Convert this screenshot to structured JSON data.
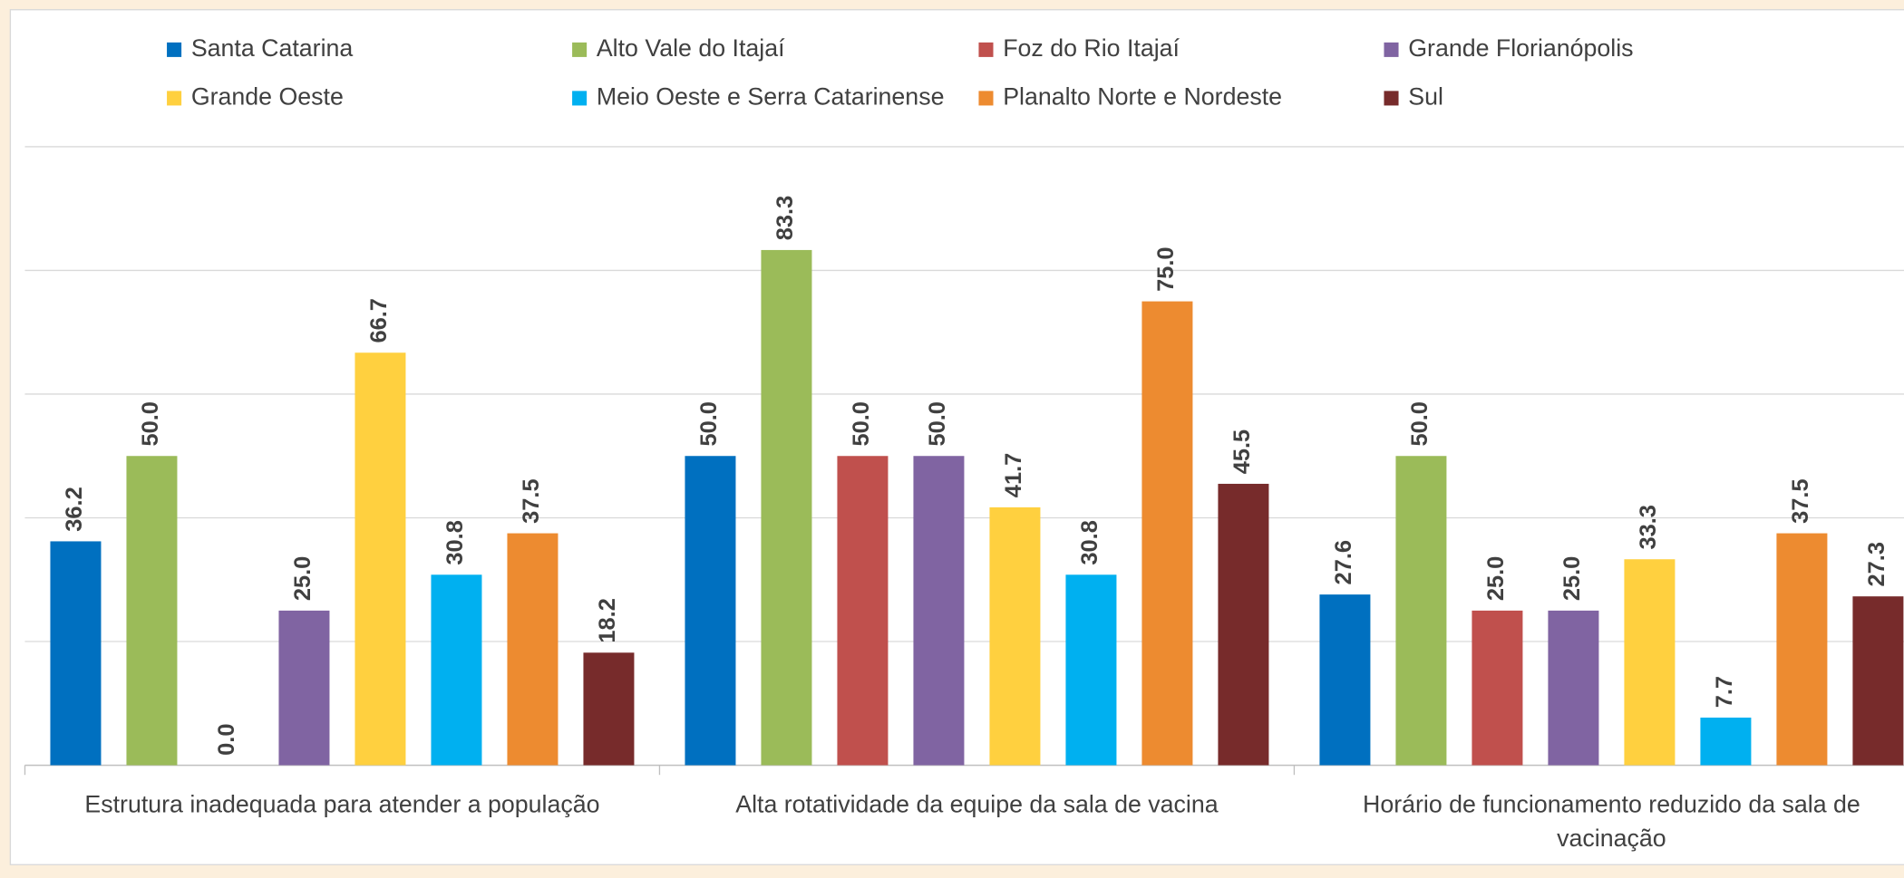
{
  "chart_data": {
    "type": "bar",
    "categories": [
      "Estrutura inadequada para atender a população",
      "Alta rotatividade da equipe da sala de vacina",
      "Horário de funcionamento reduzido da sala de vacinação"
    ],
    "series": [
      {
        "name": "Santa Catarina",
        "color": "#0070c0",
        "values": [
          36.2,
          50.0,
          27.6
        ],
        "value_labels": [
          "36.2",
          "50.0",
          "27.6"
        ]
      },
      {
        "name": "Alto Vale do Itajaí",
        "color": "#9bbb59",
        "values": [
          50.0,
          83.3,
          50.0
        ],
        "value_labels": [
          "50.0",
          "83.3",
          "50.0"
        ]
      },
      {
        "name": "Foz do Rio Itajaí",
        "color": "#c0504d",
        "values": [
          0.0,
          50.0,
          25.0
        ],
        "value_labels": [
          "0.0",
          "50.0",
          "25.0"
        ]
      },
      {
        "name": "Grande Florianópolis",
        "color": "#8064a2",
        "values": [
          25.0,
          50.0,
          25.0
        ],
        "value_labels": [
          "25.0",
          "50.0",
          "25.0"
        ]
      },
      {
        "name": "Grande Oeste",
        "color": "#ffd03f",
        "values": [
          66.7,
          41.7,
          33.3
        ],
        "value_labels": [
          "66.7",
          "41.7",
          "33.3"
        ]
      },
      {
        "name": "Meio Oeste e Serra Catarinense",
        "color": "#00b0f0",
        "values": [
          30.8,
          30.8,
          7.7
        ],
        "value_labels": [
          "30.8",
          "30.8",
          "7.7"
        ]
      },
      {
        "name": "Planalto Norte e Nordeste",
        "color": "#ed8b30",
        "values": [
          37.5,
          75.0,
          37.5
        ],
        "value_labels": [
          "37.5",
          "75.0",
          "37.5"
        ]
      },
      {
        "name": "Sul",
        "color": "#772b2b",
        "values": [
          18.2,
          45.5,
          27.3
        ],
        "value_labels": [
          "18.2",
          "45.5",
          "27.3"
        ]
      }
    ],
    "ylim": [
      0,
      100
    ],
    "yticks": [
      0,
      20,
      40,
      60,
      80,
      100
    ],
    "grid": true,
    "legend": "top"
  }
}
